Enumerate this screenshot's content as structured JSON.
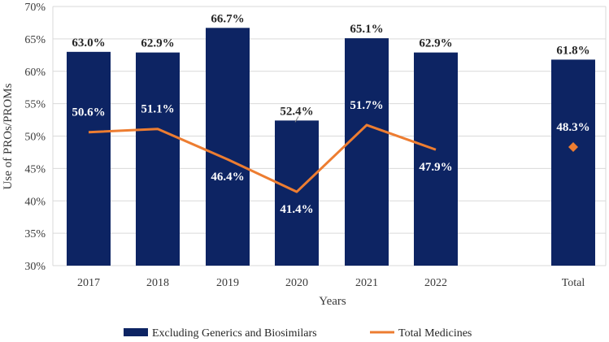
{
  "chart_data": {
    "type": "bar",
    "title": "",
    "xlabel": "Years",
    "ylabel": "Use of PROs/PROMs",
    "ylim": [
      30,
      70
    ],
    "yticks": [
      30,
      35,
      40,
      45,
      50,
      55,
      60,
      65,
      70
    ],
    "ytick_labels": [
      "30%",
      "35%",
      "40%",
      "45%",
      "50%",
      "55%",
      "60%",
      "65%",
      "70%"
    ],
    "grid": true,
    "categories": [
      "2017",
      "2018",
      "2019",
      "2020",
      "2021",
      "2022",
      "Total"
    ],
    "series": [
      {
        "name": "Excluding Generics and Biosimilars",
        "type": "bar",
        "color": "#0d2463",
        "values": [
          63.0,
          62.9,
          66.7,
          52.4,
          65.1,
          62.9,
          61.8
        ],
        "labels": [
          "63.0%",
          "62.9%",
          "66.7%",
          "52.4%",
          "65.1%",
          "62.9%",
          "61.8%"
        ]
      },
      {
        "name": "Total Medicines",
        "type": "line",
        "color": "#ed7d31",
        "values": [
          50.6,
          51.1,
          46.4,
          41.4,
          51.7,
          47.9,
          48.3
        ],
        "labels": [
          "50.6%",
          "51.1%",
          "46.4%",
          "41.4%",
          "51.7%",
          "47.9%",
          "48.3%"
        ],
        "note": "Total shown as a separate diamond marker"
      }
    ],
    "legend": {
      "position": "bottom"
    }
  }
}
